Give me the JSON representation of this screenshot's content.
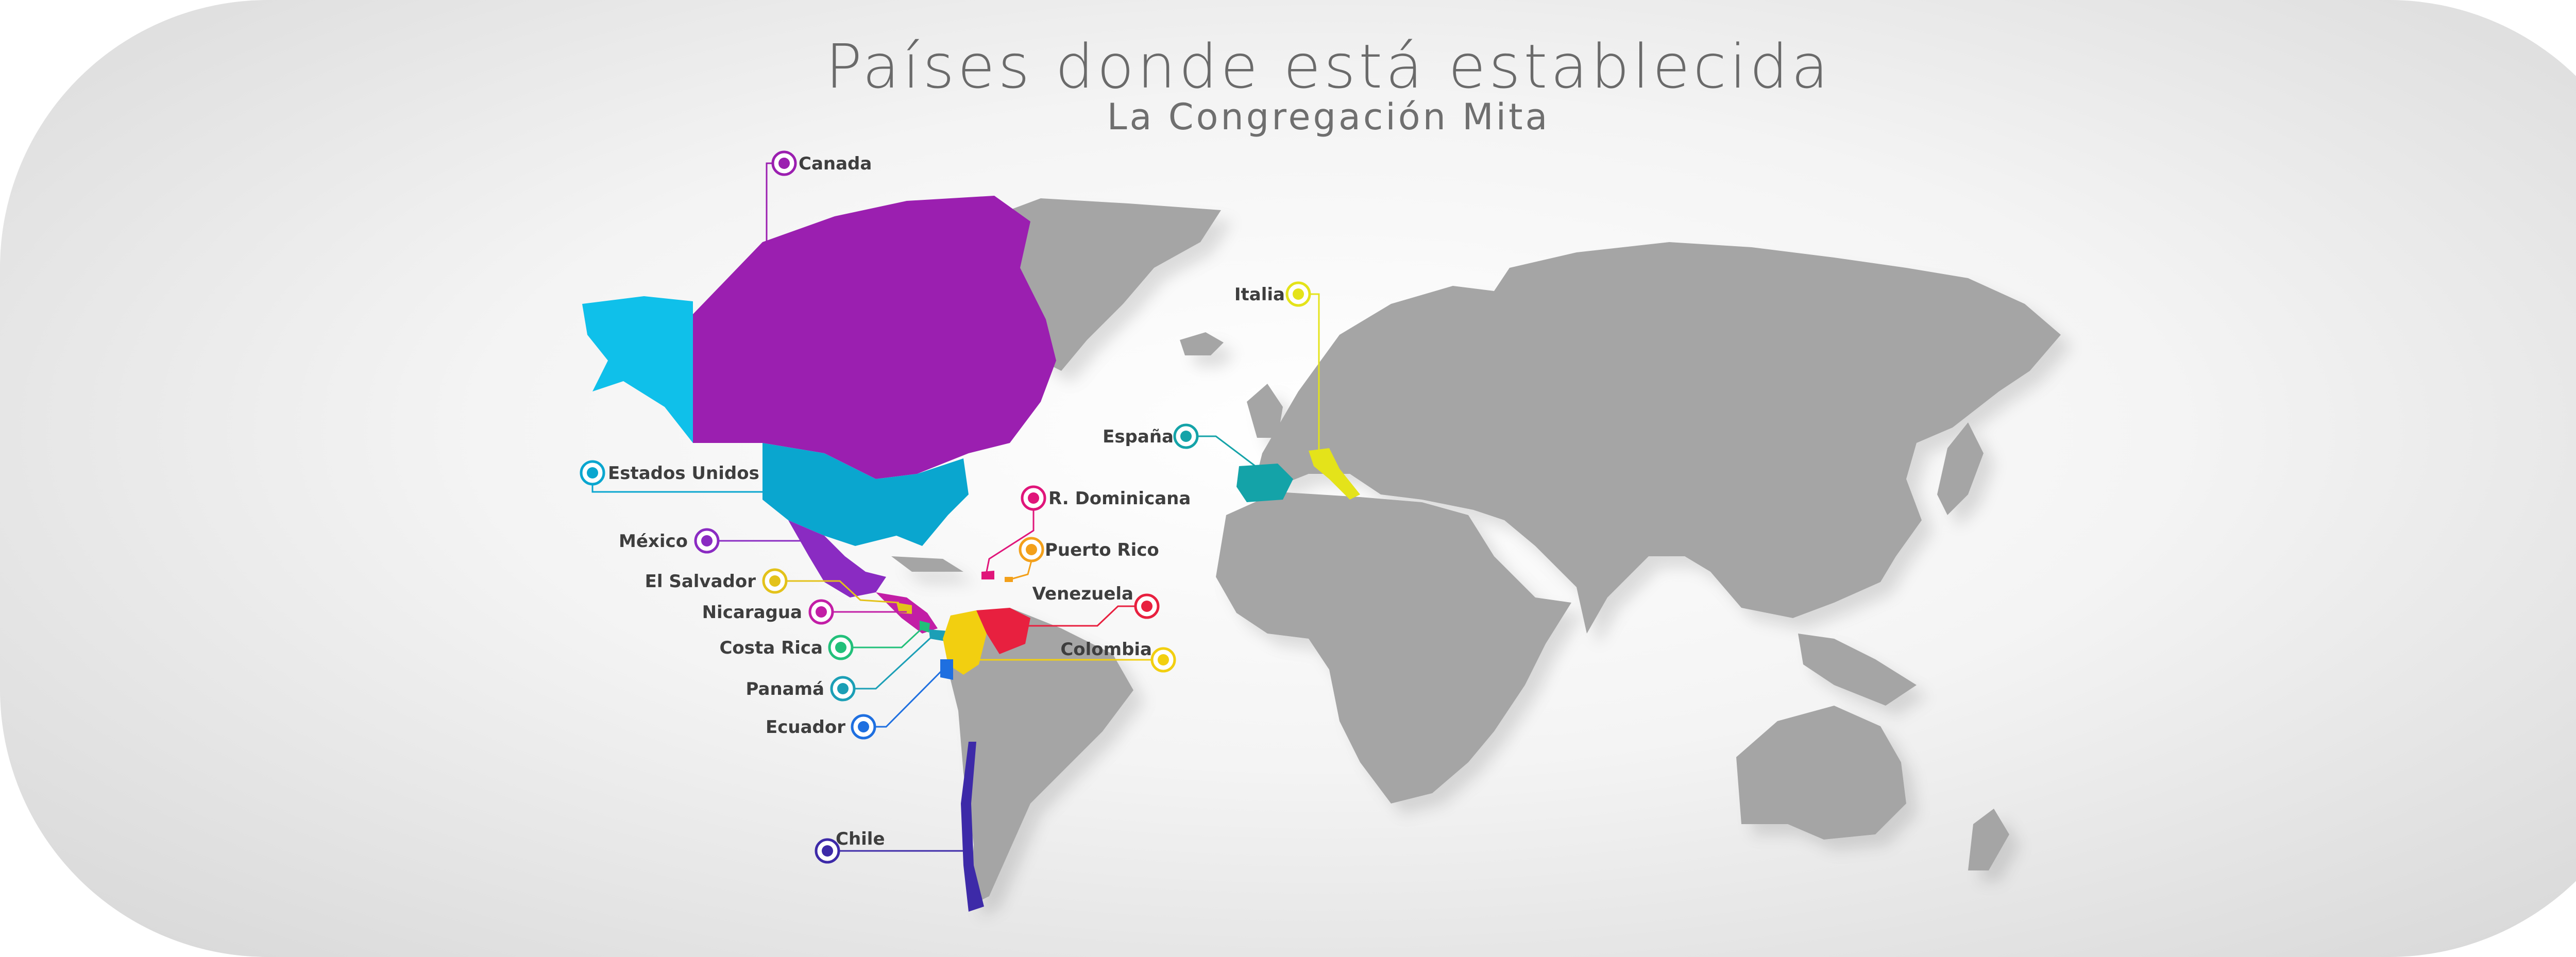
{
  "title": "Países donde está establecida",
  "subtitle": "La Congregación Mita",
  "countries": [
    {
      "name": "Canada",
      "color": "#9b1fb0"
    },
    {
      "name": "Estados Unidos",
      "color": "#0aa6cf"
    },
    {
      "name": "México",
      "color": "#8a2bc2"
    },
    {
      "name": "El Salvador",
      "color": "#e3c21a"
    },
    {
      "name": "Nicaragua",
      "color": "#c21ea6"
    },
    {
      "name": "Costa Rica",
      "color": "#22c07a"
    },
    {
      "name": "Panamá",
      "color": "#1b9fb6"
    },
    {
      "name": "Ecuador",
      "color": "#1e6fe0"
    },
    {
      "name": "Chile",
      "color": "#3d2aa8"
    },
    {
      "name": "R. Dominicana",
      "color": "#e0157a"
    },
    {
      "name": "Puerto Rico",
      "color": "#f3a01a"
    },
    {
      "name": "Venezuela",
      "color": "#e8203f"
    },
    {
      "name": "Colombia",
      "color": "#f2cf10"
    },
    {
      "name": "España",
      "color": "#14a3a8"
    },
    {
      "name": "Italia",
      "color": "#e4e31a"
    }
  ],
  "colors": {
    "land": "#a5a5a5",
    "title": "#6a6a6a",
    "label": "#3e3e3e"
  }
}
